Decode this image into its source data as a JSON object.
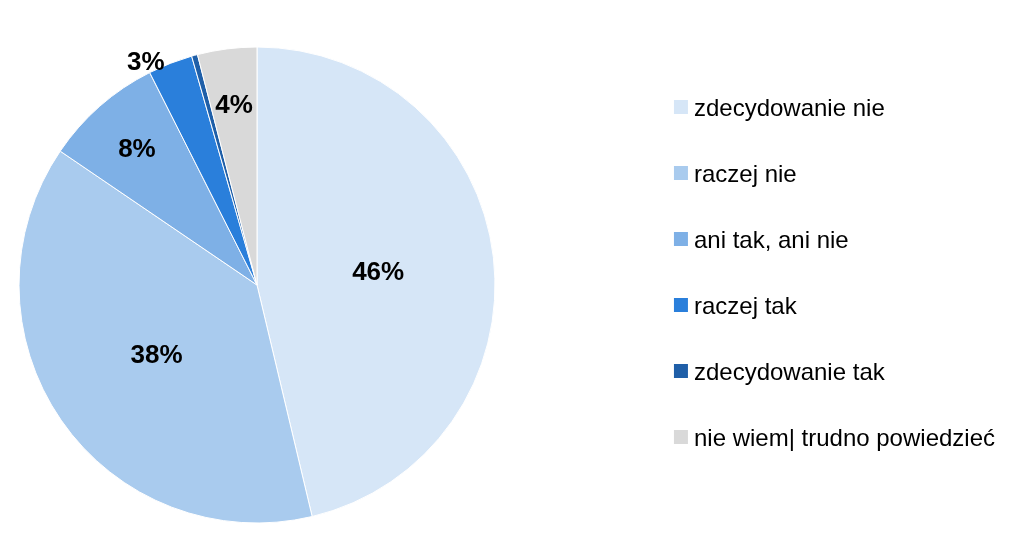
{
  "chart_data": {
    "type": "pie",
    "categories": [
      "zdecydowanie nie",
      "raczej nie",
      "ani tak, ani nie",
      "raczej tak",
      "zdecydowanie tak",
      "nie wiem| trudno powiedzieć"
    ],
    "values": [
      46,
      38,
      8,
      3,
      0.4,
      4
    ],
    "value_labels": [
      "46%",
      "38%",
      "8%",
      "3%",
      null,
      "4%"
    ],
    "colors": [
      "#d6e6f7",
      "#a9cbee",
      "#7eb0e6",
      "#2a7fdb",
      "#1f5fa8",
      "#d9d9d9"
    ],
    "legend": "right"
  }
}
